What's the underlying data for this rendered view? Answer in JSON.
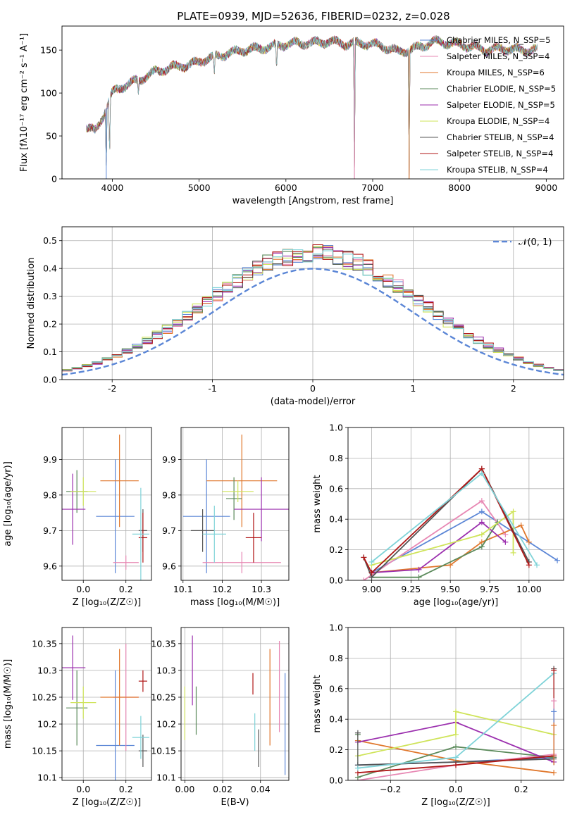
{
  "colors": {
    "c0": "#5b86d6",
    "c1": "#e787b3",
    "c2": "#e0772c",
    "c3": "#5b8a5b",
    "c4": "#9b2fae",
    "c5": "#cfe45a",
    "c6": "#555555",
    "c7": "#b01717",
    "c8": "#7fd3d8",
    "grid": "#b0b0b0"
  },
  "chart_data": [
    {
      "id": "spectrum",
      "type": "line",
      "title": "PLATE=0939, MJD=52636, FIBERID=0232, z=0.028",
      "xlabel": "wavelength [Angstrom, rest frame]",
      "ylabel": "Flux [fλ10⁻¹⁷ erg cm⁻² s⁻¹ A⁻¹]",
      "xlim": [
        3420,
        9200
      ],
      "ylim": [
        0,
        178
      ],
      "xticks": [
        4000,
        5000,
        6000,
        7000,
        8000,
        9000
      ],
      "yticks": [
        0,
        50,
        100,
        150
      ],
      "grid": false,
      "legend_position": "top-right",
      "legend": [
        {
          "label": "Chabrier MILES, N_SSP=5",
          "color_key": "c0"
        },
        {
          "label": "Salpeter MILES, N_SSP=4",
          "color_key": "c1"
        },
        {
          "label": "Kroupa MILES, N_SSP=6",
          "color_key": "c2"
        },
        {
          "label": "Chabrier ELODIE, N_SSP=5",
          "color_key": "c3"
        },
        {
          "label": "Salpeter ELODIE, N_SSP=5",
          "color_key": "c4"
        },
        {
          "label": "Kroupa ELODIE, N_SSP=4",
          "color_key": "c5"
        },
        {
          "label": "Chabrier STELIB, N_SSP=4",
          "color_key": "c6"
        },
        {
          "label": "Salpeter STELIB, N_SSP=4",
          "color_key": "c7"
        },
        {
          "label": "Kroupa STELIB, N_SSP=4",
          "color_key": "c8"
        }
      ],
      "continuum": {
        "x": [
          3700,
          3800,
          3900,
          4000,
          4100,
          4300,
          4500,
          4700,
          4900,
          5100,
          5300,
          5500,
          5700,
          5900,
          6100,
          6300,
          6500,
          6700,
          6900,
          7100,
          7300,
          7500,
          7700,
          7900,
          8100,
          8300,
          8500,
          8700,
          8900
        ],
        "y": [
          60,
          55,
          75,
          100,
          107,
          115,
          125,
          130,
          133,
          140,
          145,
          150,
          152,
          155,
          158,
          158,
          160,
          157,
          158,
          155,
          148,
          152,
          160,
          158,
          155,
          150,
          152,
          150,
          150
        ]
      },
      "absorption_features": [
        {
          "x": 3930,
          "y": 0
        },
        {
          "x": 3968,
          "y": 20
        },
        {
          "x": 4300,
          "y": 98
        },
        {
          "x": 5175,
          "y": 120
        },
        {
          "x": 5893,
          "y": 123
        },
        {
          "x": 6790,
          "y": 0
        },
        {
          "x": 7420,
          "y": 0
        }
      ]
    },
    {
      "id": "residuals",
      "type": "line",
      "xlabel": "(data-model)/error",
      "ylabel": "Normed distribution",
      "xlim": [
        -2.5,
        2.5
      ],
      "ylim": [
        0,
        0.55
      ],
      "xticks": [
        -2,
        -1,
        0,
        1,
        2
      ],
      "yticks": [
        0.0,
        0.1,
        0.2,
        0.3,
        0.4,
        0.5
      ],
      "grid": true,
      "bin_width": 0.1,
      "bin_start": -2.5,
      "reference": {
        "label": "𝒩(0, 1)",
        "color_key": "c0",
        "legend_position": "top-right"
      },
      "series": [
        {
          "color_key": "c0",
          "offset": 0.0
        },
        {
          "color_key": "c1",
          "offset": 0.012
        },
        {
          "color_key": "c2",
          "offset": 0.024
        },
        {
          "color_key": "c3",
          "offset": -0.012
        },
        {
          "color_key": "c4",
          "offset": 0.03
        },
        {
          "color_key": "c5",
          "offset": -0.02
        },
        {
          "color_key": "c6",
          "offset": 0.006
        },
        {
          "color_key": "c7",
          "offset": 0.018
        },
        {
          "color_key": "c8",
          "offset": -0.006
        }
      ]
    },
    {
      "id": "age_vs_z",
      "type": "scatter",
      "xlabel": "Z [log₁₀(Z/Z☉)]",
      "ylabel": "age  [log₁₀(age/yr)]",
      "xlim": [
        -0.1,
        0.32
      ],
      "ylim": [
        9.56,
        9.99
      ],
      "xticks": [
        0.0,
        0.2
      ],
      "xticklabels": [
        "0.0",
        "0.2"
      ],
      "yticks": [
        9.6,
        9.7,
        9.8,
        9.9
      ],
      "grid": true,
      "points": [
        {
          "color_key": "c0",
          "x": 0.15,
          "xerr": 0.09,
          "y": 9.74,
          "yerr": 0.16
        },
        {
          "color_key": "c1",
          "x": 0.2,
          "xerr": 0.06,
          "y": 9.61,
          "yerr": 0.02
        },
        {
          "color_key": "c2",
          "x": 0.17,
          "xerr": 0.09,
          "y": 9.84,
          "yerr": 0.13
        },
        {
          "color_key": "c3",
          "x": -0.03,
          "xerr": 0.05,
          "y": 9.81,
          "yerr": 0.06
        },
        {
          "color_key": "c4",
          "x": -0.05,
          "xerr": 0.06,
          "y": 9.76,
          "yerr": 0.1
        },
        {
          "color_key": "c5",
          "x": 0.0,
          "xerr": 0.06,
          "y": 9.81,
          "yerr": 0.04
        },
        {
          "color_key": "c6",
          "x": 0.28,
          "xerr": 0.02,
          "y": 9.7,
          "yerr": 0.06
        },
        {
          "color_key": "c7",
          "x": 0.28,
          "xerr": 0.02,
          "y": 9.68,
          "yerr": 0.07
        },
        {
          "color_key": "c8",
          "x": 0.27,
          "xerr": 0.04,
          "y": 9.69,
          "yerr": 0.13
        }
      ]
    },
    {
      "id": "age_vs_mass",
      "type": "scatter",
      "xlabel": "mass [log₁₀(M/M☉)]",
      "ylabel": "",
      "xlim": [
        10.095,
        10.37
      ],
      "ylim": [
        9.56,
        9.99
      ],
      "xticks": [
        10.1,
        10.2,
        10.3
      ],
      "xticklabels": [
        "10.1",
        "10.2",
        "10.3"
      ],
      "yticks": [
        9.6,
        9.7,
        9.8,
        9.9
      ],
      "grid": true,
      "points": [
        {
          "color_key": "c0",
          "x": 10.16,
          "xerr": 0.06,
          "y": 9.74,
          "yerr": 0.16
        },
        {
          "color_key": "c1",
          "x": 10.25,
          "xerr": 0.1,
          "y": 9.61,
          "yerr": 0.03
        },
        {
          "color_key": "c2",
          "x": 10.25,
          "xerr": 0.09,
          "y": 9.84,
          "yerr": 0.13
        },
        {
          "color_key": "c3",
          "x": 10.23,
          "xerr": 0.02,
          "y": 9.79,
          "yerr": 0.06
        },
        {
          "color_key": "c4",
          "x": 10.3,
          "xerr": 0.07,
          "y": 9.76,
          "yerr": 0.09
        },
        {
          "color_key": "c5",
          "x": 10.24,
          "xerr": 0.04,
          "y": 9.81,
          "yerr": 0.03
        },
        {
          "color_key": "c6",
          "x": 10.15,
          "xerr": 0.03,
          "y": 9.7,
          "yerr": 0.06
        },
        {
          "color_key": "c7",
          "x": 10.28,
          "xerr": 0.02,
          "y": 9.68,
          "yerr": 0.07
        },
        {
          "color_key": "c8",
          "x": 10.18,
          "xerr": 0.03,
          "y": 9.69,
          "yerr": 0.08
        }
      ]
    },
    {
      "id": "weight_vs_age",
      "type": "line",
      "xlabel": "age  [log₁₀(age/yr)]",
      "ylabel": "mass weight",
      "xlim": [
        8.85,
        10.22
      ],
      "ylim": [
        0,
        1.0
      ],
      "xticks": [
        9.0,
        9.25,
        9.5,
        9.75,
        10.0
      ],
      "xticklabels": [
        "9.00",
        "9.25",
        "9.50",
        "9.75",
        "10.00"
      ],
      "yticks": [
        0.0,
        0.2,
        0.4,
        0.6,
        0.8,
        1.0
      ],
      "grid": true,
      "series": [
        {
          "color_key": "c0",
          "x": [
            9.0,
            9.7,
            10.18
          ],
          "y": [
            0.05,
            0.45,
            0.13
          ]
        },
        {
          "color_key": "c1",
          "x": [
            8.95,
            9.7,
            9.85
          ],
          "y": [
            0.0,
            0.52,
            0.3
          ]
        },
        {
          "color_key": "c2",
          "x": [
            9.0,
            9.5,
            9.7,
            9.95,
            10.0
          ],
          "y": [
            0.05,
            0.1,
            0.25,
            0.36,
            0.25
          ]
        },
        {
          "color_key": "c3",
          "x": [
            9.0,
            9.3,
            9.7,
            9.8
          ],
          "y": [
            0.02,
            0.02,
            0.22,
            0.38
          ]
        },
        {
          "color_key": "c4",
          "x": [
            9.0,
            9.3,
            9.7,
            9.85
          ],
          "y": [
            0.05,
            0.07,
            0.38,
            0.25
          ]
        },
        {
          "color_key": "c5",
          "x": [
            9.0,
            9.7,
            9.9,
            9.9
          ],
          "y": [
            0.1,
            0.3,
            0.45,
            0.18
          ]
        },
        {
          "color_key": "c6",
          "x": [
            8.95,
            9.0,
            9.7,
            10.0
          ],
          "y": [
            0.15,
            0.02,
            0.73,
            0.12
          ]
        },
        {
          "color_key": "c7",
          "x": [
            8.95,
            9.0,
            9.7,
            10.0
          ],
          "y": [
            0.15,
            0.05,
            0.73,
            0.1
          ]
        },
        {
          "color_key": "c8",
          "x": [
            9.0,
            9.7,
            10.05
          ],
          "y": [
            0.12,
            0.7,
            0.1
          ]
        }
      ]
    },
    {
      "id": "mass_vs_z",
      "type": "scatter",
      "xlabel": "Z [log₁₀(Z/Z☉)]",
      "ylabel": "mass [log₁₀(M/M☉)]",
      "xlim": [
        -0.1,
        0.32
      ],
      "ylim": [
        10.095,
        10.38
      ],
      "xticks": [
        0.0,
        0.2
      ],
      "xticklabels": [
        "0.0",
        "0.2"
      ],
      "yticks": [
        10.1,
        10.15,
        10.2,
        10.25,
        10.3,
        10.35
      ],
      "grid": true,
      "points": [
        {
          "color_key": "c0",
          "x": 0.15,
          "xerr": 0.09,
          "y": 10.16,
          "yerr": 0.14
        },
        {
          "color_key": "c1",
          "x": 0.2,
          "xerr": 0.06,
          "y": 10.25,
          "yerr": 0.1
        },
        {
          "color_key": "c2",
          "x": 0.17,
          "xerr": 0.09,
          "y": 10.25,
          "yerr": 0.09
        },
        {
          "color_key": "c3",
          "x": -0.03,
          "xerr": 0.05,
          "y": 10.23,
          "yerr": 0.07
        },
        {
          "color_key": "c4",
          "x": -0.05,
          "xerr": 0.06,
          "y": 10.305,
          "yerr": 0.06
        },
        {
          "color_key": "c5",
          "x": 0.0,
          "xerr": 0.06,
          "y": 10.24,
          "yerr": 0.03
        },
        {
          "color_key": "c6",
          "x": 0.28,
          "xerr": 0.02,
          "y": 10.15,
          "yerr": 0.03
        },
        {
          "color_key": "c7",
          "x": 0.28,
          "xerr": 0.02,
          "y": 10.28,
          "yerr": 0.02
        },
        {
          "color_key": "c8",
          "x": 0.27,
          "xerr": 0.04,
          "y": 10.175,
          "yerr": 0.04
        }
      ]
    },
    {
      "id": "mass_vs_ebv",
      "type": "scatter",
      "xlabel": "E(B-V)",
      "ylabel": "",
      "xlim": [
        -0.002,
        0.055
      ],
      "ylim": [
        10.095,
        10.38
      ],
      "xticks": [
        0.0,
        0.02,
        0.04
      ],
      "xticklabels": [
        "0.00",
        "0.02",
        "0.04"
      ],
      "yticks": [
        10.1,
        10.15,
        10.2,
        10.25,
        10.3,
        10.35
      ],
      "grid": true,
      "points": [
        {
          "color_key": "c0",
          "x": 0.053,
          "y": 10.2,
          "yerr": 0.095
        },
        {
          "color_key": "c1",
          "x": 0.05,
          "y": 10.27,
          "yerr": 0.085
        },
        {
          "color_key": "c2",
          "x": 0.045,
          "y": 10.25,
          "yerr": 0.09
        },
        {
          "color_key": "c3",
          "x": 0.006,
          "y": 10.225,
          "yerr": 0.045
        },
        {
          "color_key": "c4",
          "x": 0.004,
          "y": 10.3,
          "yerr": 0.065
        },
        {
          "color_key": "c5",
          "x": 0.0,
          "y": 10.22,
          "yerr": 0.05
        },
        {
          "color_key": "c6",
          "x": 0.039,
          "y": 10.155,
          "yerr": 0.035
        },
        {
          "color_key": "c7",
          "x": 0.036,
          "y": 10.275,
          "yerr": 0.02
        },
        {
          "color_key": "c8",
          "x": 0.037,
          "y": 10.185,
          "yerr": 0.035
        }
      ]
    },
    {
      "id": "weight_vs_z",
      "type": "line",
      "xlabel": "Z [log₁₀(Z/Z☉)]",
      "ylabel": "mass weight",
      "xlim": [
        -0.33,
        0.33
      ],
      "ylim": [
        0,
        1.0
      ],
      "xticks": [
        -0.2,
        0.0,
        0.2
      ],
      "xticklabels": [
        "−0.2",
        "0.0",
        "0.2"
      ],
      "yticks": [
        0.0,
        0.2,
        0.4,
        0.6,
        0.8,
        1.0
      ],
      "grid": true,
      "series": [
        {
          "color_key": "c0",
          "x": [
            -0.3,
            0.0,
            0.3
          ],
          "y": [
            0.1,
            0.12,
            0.15
          ]
        },
        {
          "color_key": "c1",
          "x": [
            -0.3,
            0.0,
            0.3
          ],
          "y": [
            0.0,
            0.1,
            0.17
          ]
        },
        {
          "color_key": "c2",
          "x": [
            -0.3,
            0.0,
            0.3
          ],
          "y": [
            0.26,
            0.13,
            0.05
          ]
        },
        {
          "color_key": "c3",
          "x": [
            -0.3,
            0.0,
            0.3
          ],
          "y": [
            0.02,
            0.22,
            0.15
          ]
        },
        {
          "color_key": "c4",
          "x": [
            -0.3,
            0.0,
            0.3
          ],
          "y": [
            0.25,
            0.38,
            0.12
          ]
        },
        {
          "color_key": "c5",
          "x": [
            -0.3,
            0.0,
            0.0,
            0.3
          ],
          "y": [
            0.16,
            0.3,
            0.45,
            0.3
          ]
        },
        {
          "color_key": "c6",
          "x": [
            -0.3,
            0.0,
            0.3
          ],
          "y": [
            0.1,
            0.12,
            0.14
          ]
        },
        {
          "color_key": "c7",
          "x": [
            -0.3,
            0.0,
            0.3
          ],
          "y": [
            0.05,
            0.1,
            0.16
          ]
        },
        {
          "color_key": "c8",
          "x": [
            -0.3,
            0.0,
            0.3
          ],
          "y": [
            0.08,
            0.15,
            0.7
          ]
        }
      ],
      "markers_at_edges": [
        {
          "color_key": "c6",
          "x": 0.3,
          "y": 0.73
        },
        {
          "color_key": "c7",
          "x": 0.3,
          "y": 0.72
        },
        {
          "color_key": "c1",
          "x": 0.3,
          "y": 0.52
        },
        {
          "color_key": "c0",
          "x": 0.3,
          "y": 0.45
        },
        {
          "color_key": "c2",
          "x": 0.3,
          "y": 0.36
        },
        {
          "color_key": "c3",
          "x": -0.3,
          "y": 0.3
        },
        {
          "color_key": "c6",
          "x": -0.3,
          "y": 0.31
        }
      ]
    }
  ]
}
